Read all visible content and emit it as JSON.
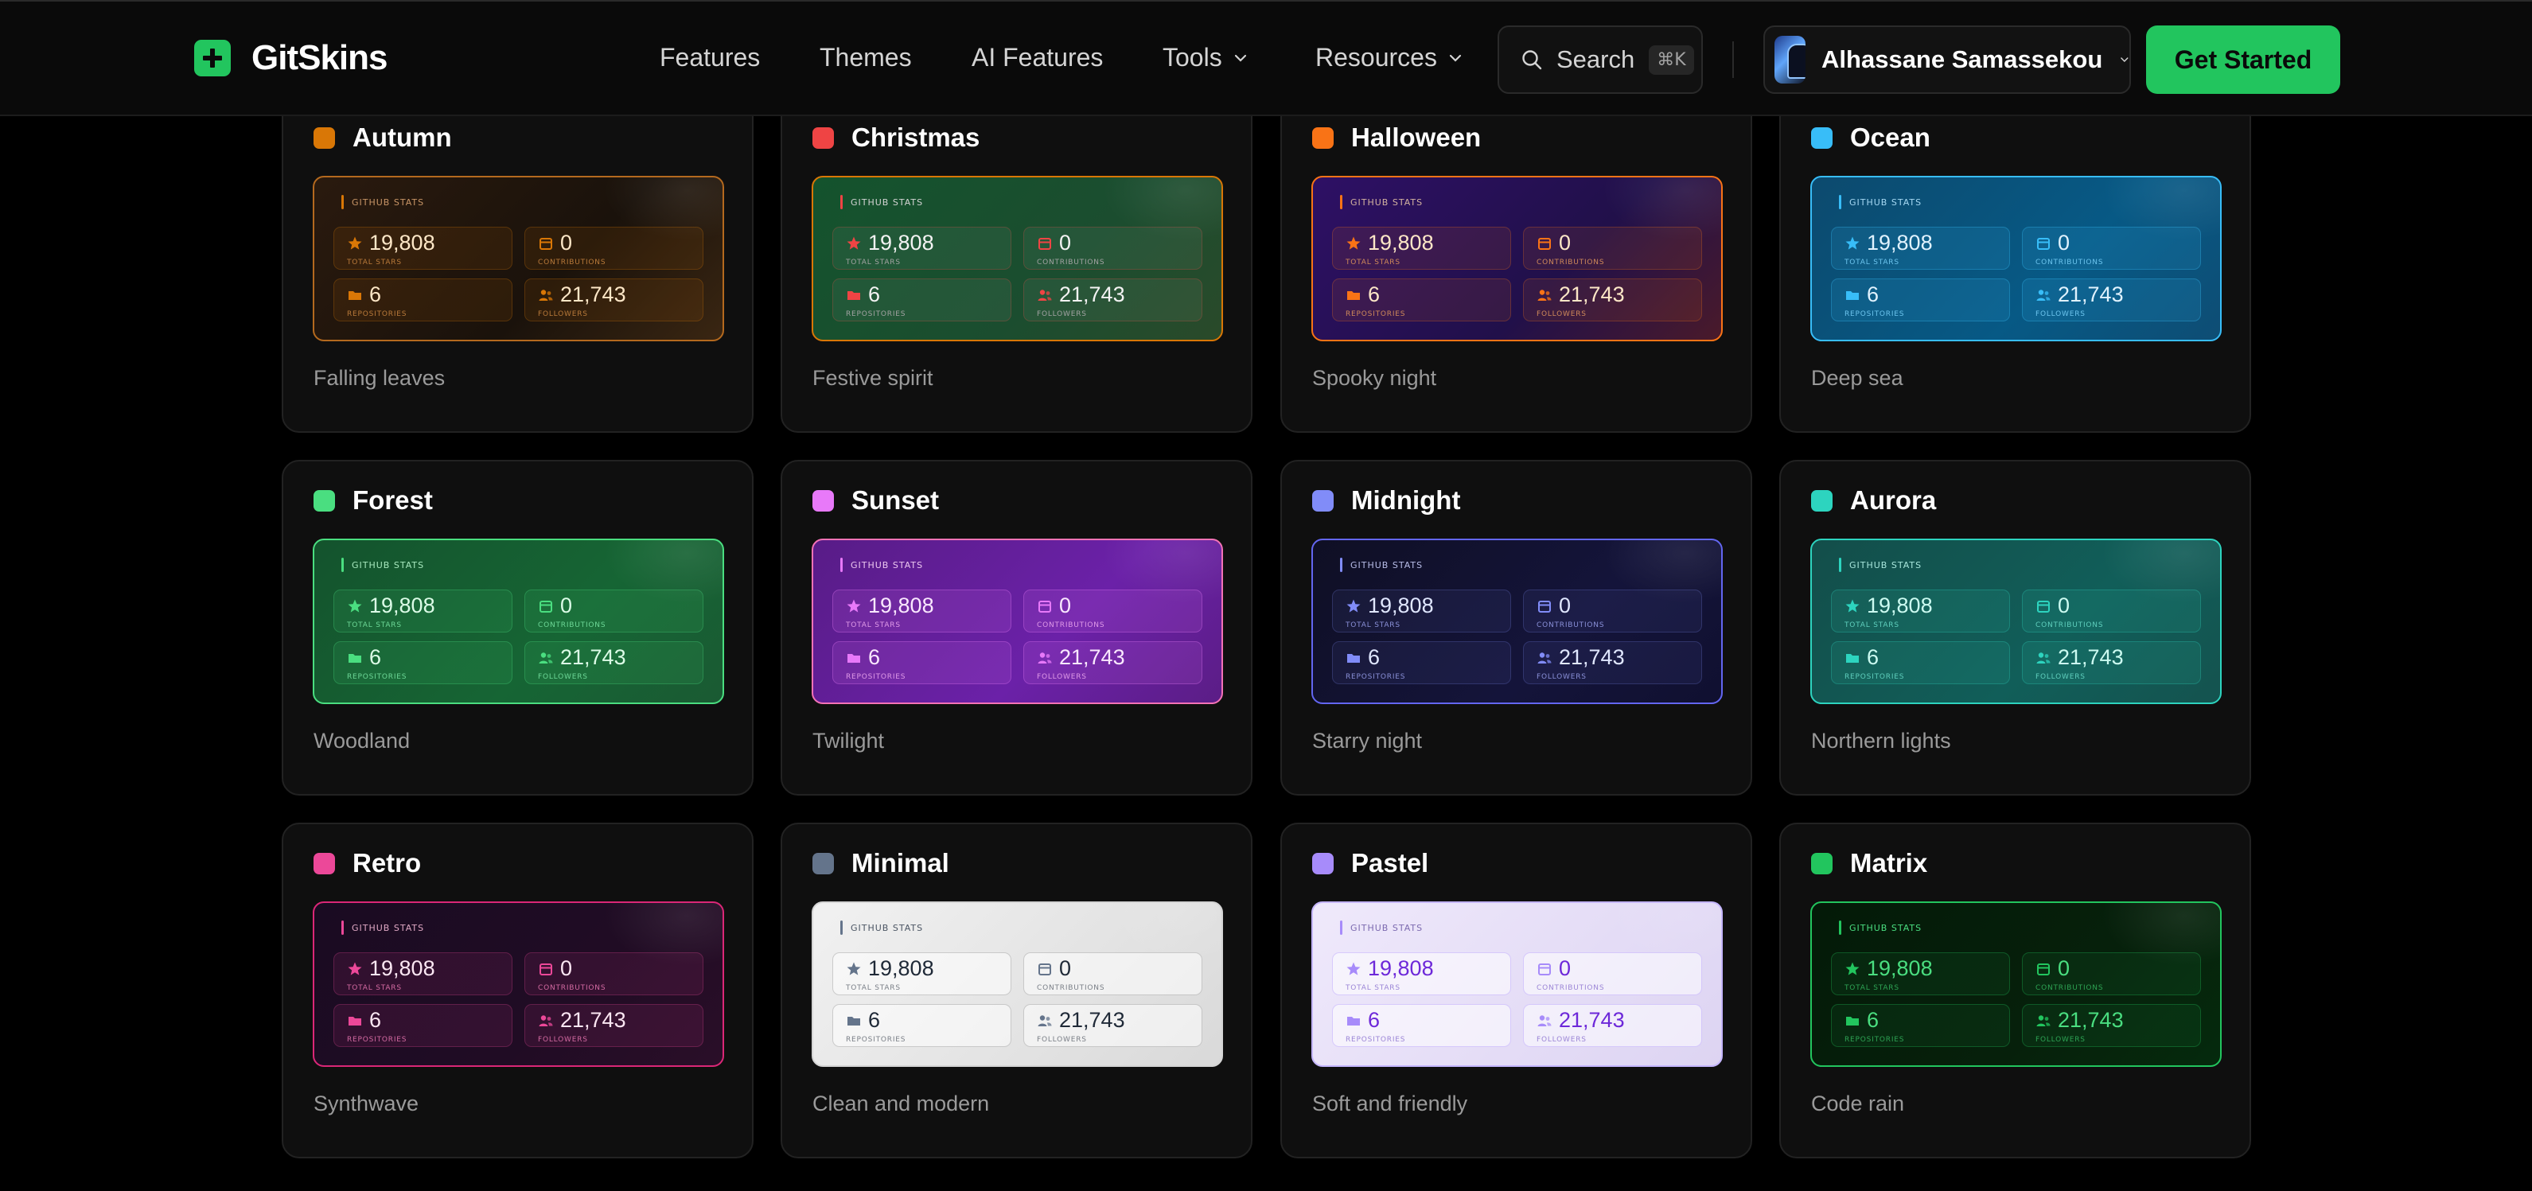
{
  "nav": {
    "brand": "GitSkins",
    "links": [
      {
        "label": "Features"
      },
      {
        "label": "Themes"
      },
      {
        "label": "AI Features"
      },
      {
        "label": "Tools"
      },
      {
        "label": "Resources"
      }
    ],
    "search_label": "Search",
    "search_shortcut": "⌘K",
    "user_name": "Alhassane Samassekou",
    "cta_label": "Get Started"
  },
  "preview": {
    "title": "GITHUB STATS",
    "stats": [
      {
        "value": "19,808",
        "label": "TOTAL STARS",
        "icon": "star-icon"
      },
      {
        "value": "0",
        "label": "CONTRIBUTIONS",
        "icon": "calendar-icon"
      },
      {
        "value": "6",
        "label": "REPOSITORIES",
        "icon": "folder-icon"
      },
      {
        "value": "21,743",
        "label": "FOLLOWERS",
        "icon": "users-icon"
      }
    ]
  },
  "themes": [
    {
      "name": "Autumn",
      "desc": "Falling leaves",
      "accent": "#d97706"
    },
    {
      "name": "Christmas",
      "desc": "Festive spirit",
      "accent": "#ef4444"
    },
    {
      "name": "Halloween",
      "desc": "Spooky night",
      "accent": "#f97316"
    },
    {
      "name": "Ocean",
      "desc": "Deep sea",
      "accent": "#38bdf8"
    },
    {
      "name": "Forest",
      "desc": "Woodland",
      "accent": "#4ade80"
    },
    {
      "name": "Sunset",
      "desc": "Twilight",
      "accent": "#e879f9"
    },
    {
      "name": "Midnight",
      "desc": "Starry night",
      "accent": "#818cf8"
    },
    {
      "name": "Aurora",
      "desc": "Northern lights",
      "accent": "#2dd4bf"
    },
    {
      "name": "Retro",
      "desc": "Synthwave",
      "accent": "#ec4899"
    },
    {
      "name": "Minimal",
      "desc": "Clean and modern",
      "accent": "#64748b"
    },
    {
      "name": "Pastel",
      "desc": "Soft and friendly",
      "accent": "#a78bfa"
    },
    {
      "name": "Matrix",
      "desc": "Code rain",
      "accent": "#22c55e"
    }
  ]
}
